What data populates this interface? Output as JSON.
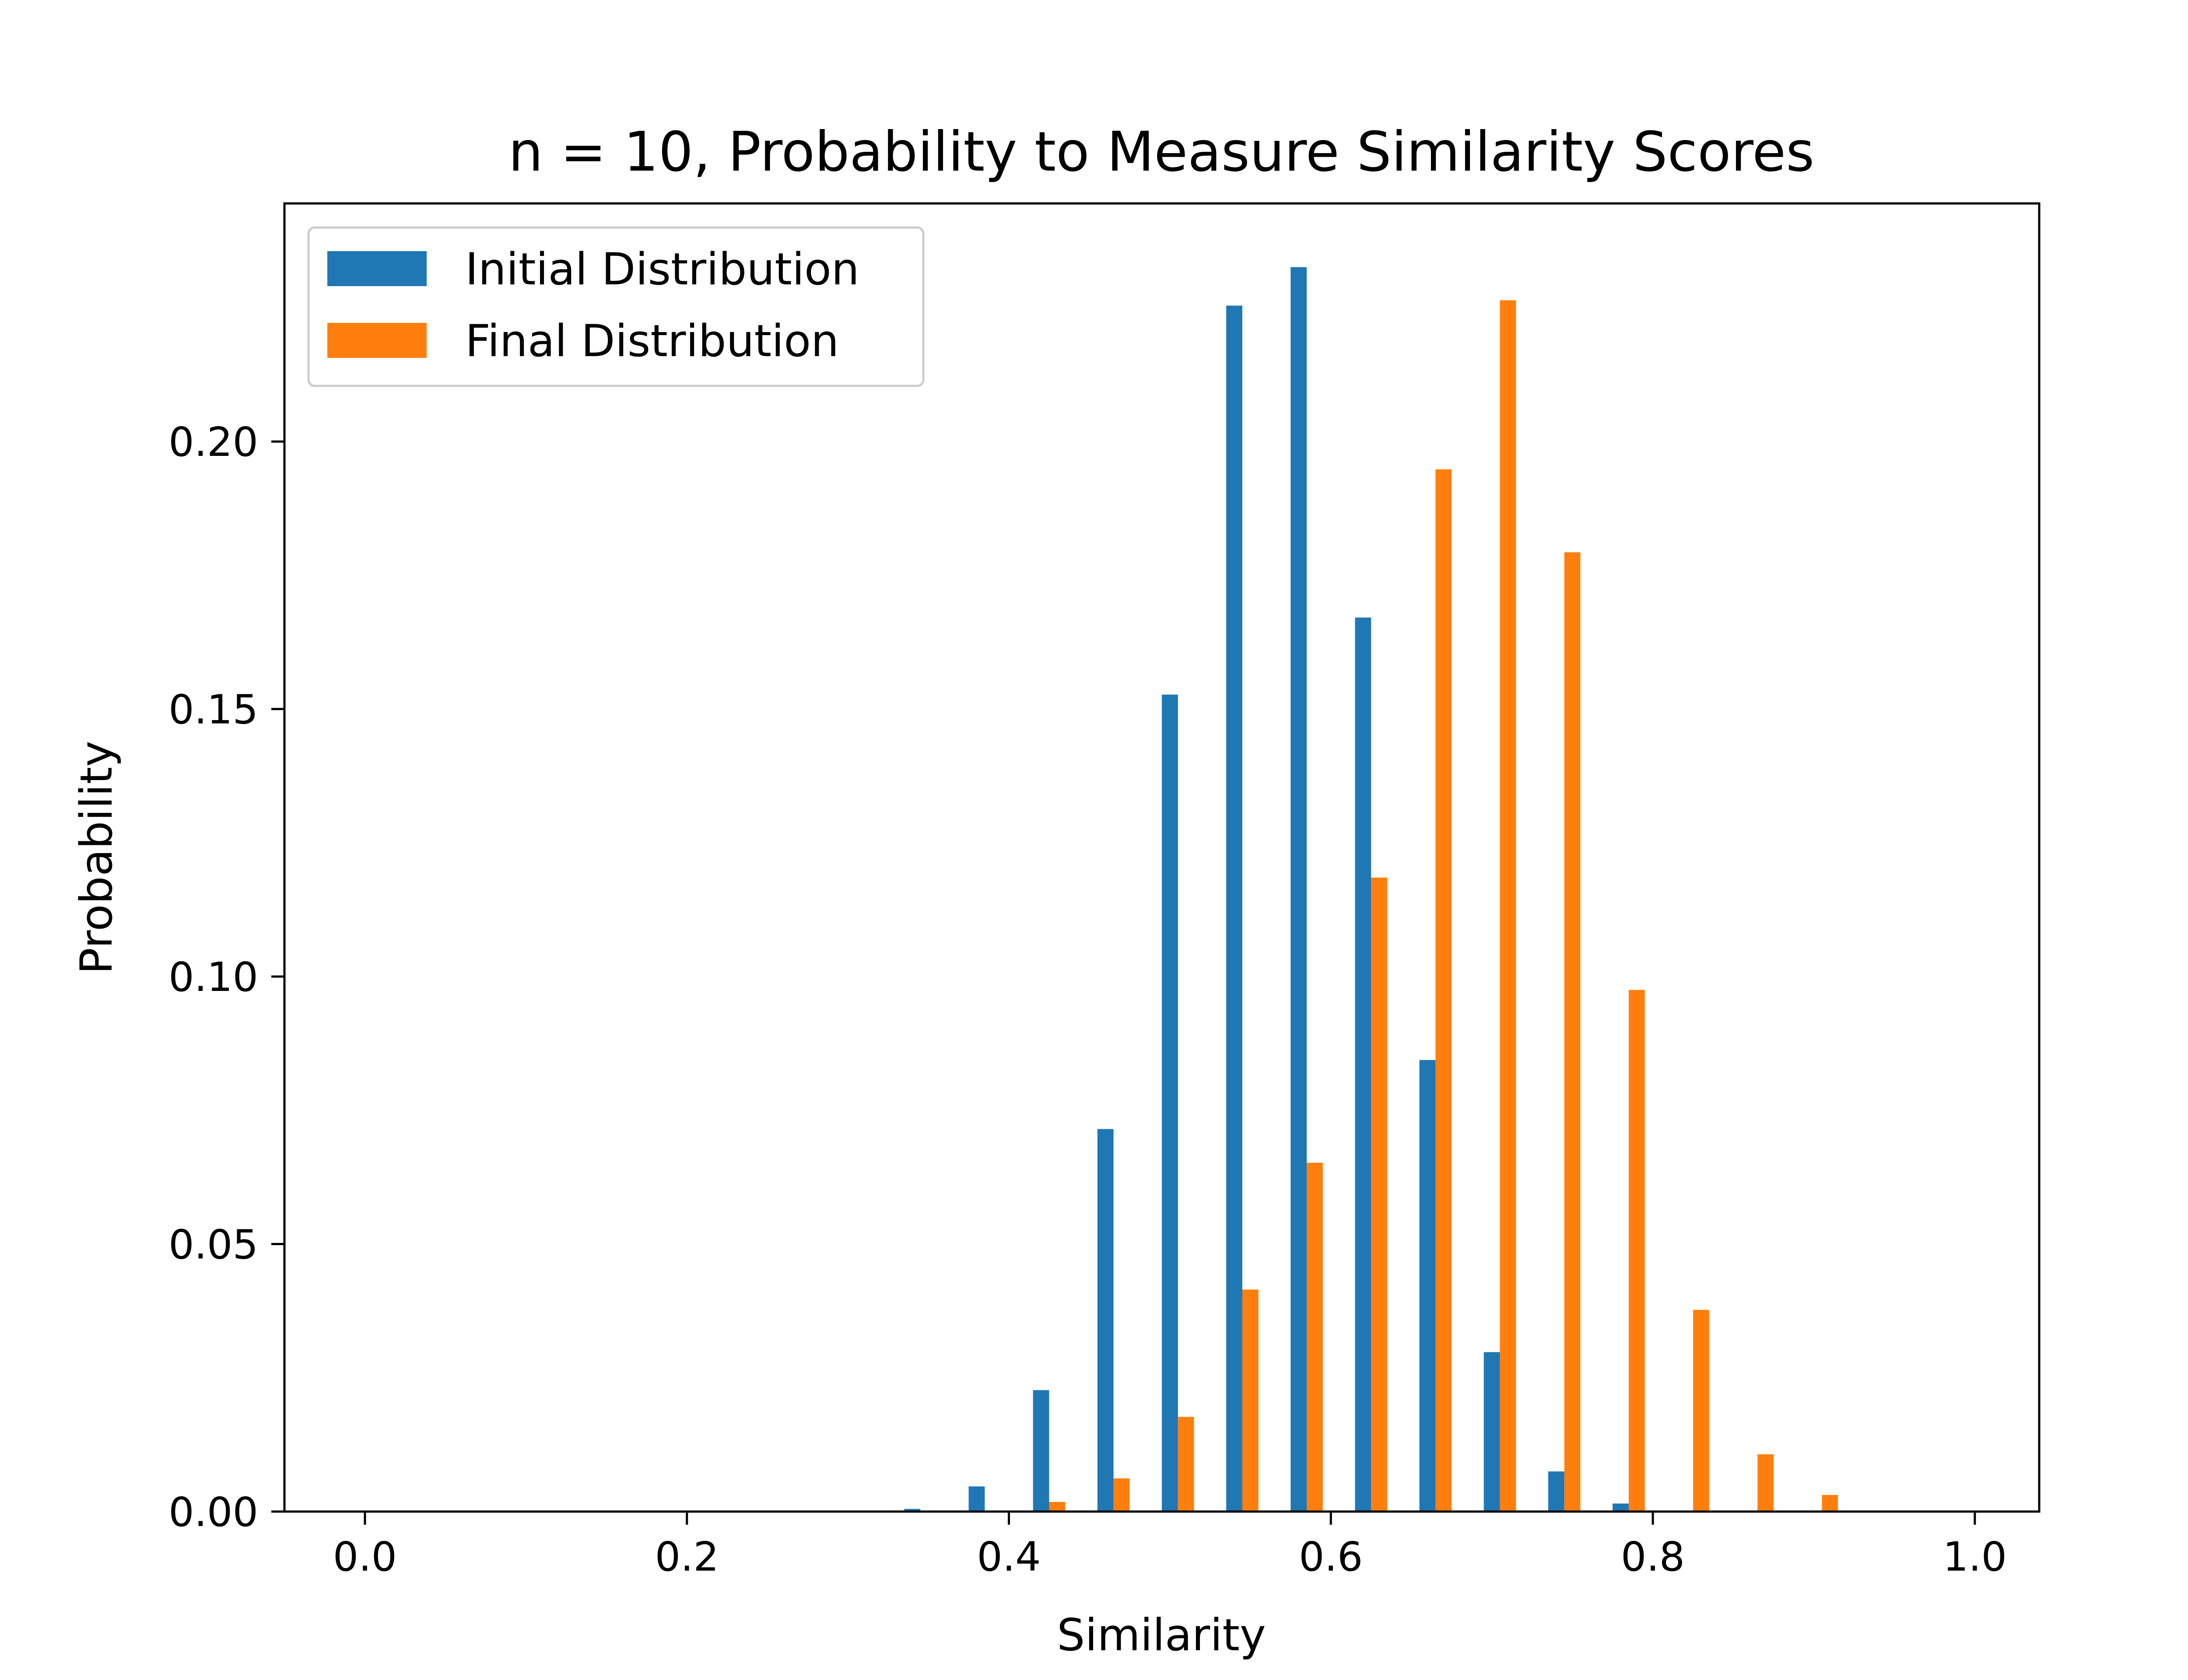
{
  "chart_data": {
    "type": "bar",
    "title": "n = 10, Probability to Measure Similarity Scores",
    "xlabel": "Similarity",
    "ylabel": "Probability",
    "xlim": [
      -0.05,
      1.04
    ],
    "ylim": [
      0,
      0.2445
    ],
    "xticks": [
      "0.0",
      "0.2",
      "0.4",
      "0.6",
      "0.8",
      "1.0"
    ],
    "xtick_values": [
      0.0,
      0.2,
      0.4,
      0.6,
      0.8,
      1.0
    ],
    "yticks": [
      "0.00",
      "0.05",
      "0.10",
      "0.15",
      "0.20"
    ],
    "ytick_values": [
      0.0,
      0.05,
      0.1,
      0.15,
      0.2
    ],
    "grid": false,
    "legend_position": "top-left",
    "bar_width": 0.01,
    "series": [
      {
        "name": "Initial Distribution",
        "color": "#1f77b4",
        "x": [
          0.34,
          0.38,
          0.42,
          0.46,
          0.5,
          0.54,
          0.58,
          0.62,
          0.66,
          0.7,
          0.74,
          0.78
        ],
        "values": [
          0.0005,
          0.0047,
          0.0227,
          0.0715,
          0.1527,
          0.2254,
          0.2326,
          0.1671,
          0.0844,
          0.0298,
          0.0075,
          0.0015
        ]
      },
      {
        "name": "Final Distribution",
        "color": "#ff7f0e",
        "x": [
          0.43,
          0.47,
          0.51,
          0.55,
          0.59,
          0.63,
          0.67,
          0.71,
          0.75,
          0.79,
          0.83,
          0.87,
          0.91
        ],
        "values": [
          0.0018,
          0.0062,
          0.0177,
          0.0415,
          0.0652,
          0.1185,
          0.1948,
          0.2264,
          0.1793,
          0.0975,
          0.0377,
          0.0107,
          0.0031
        ]
      }
    ]
  }
}
